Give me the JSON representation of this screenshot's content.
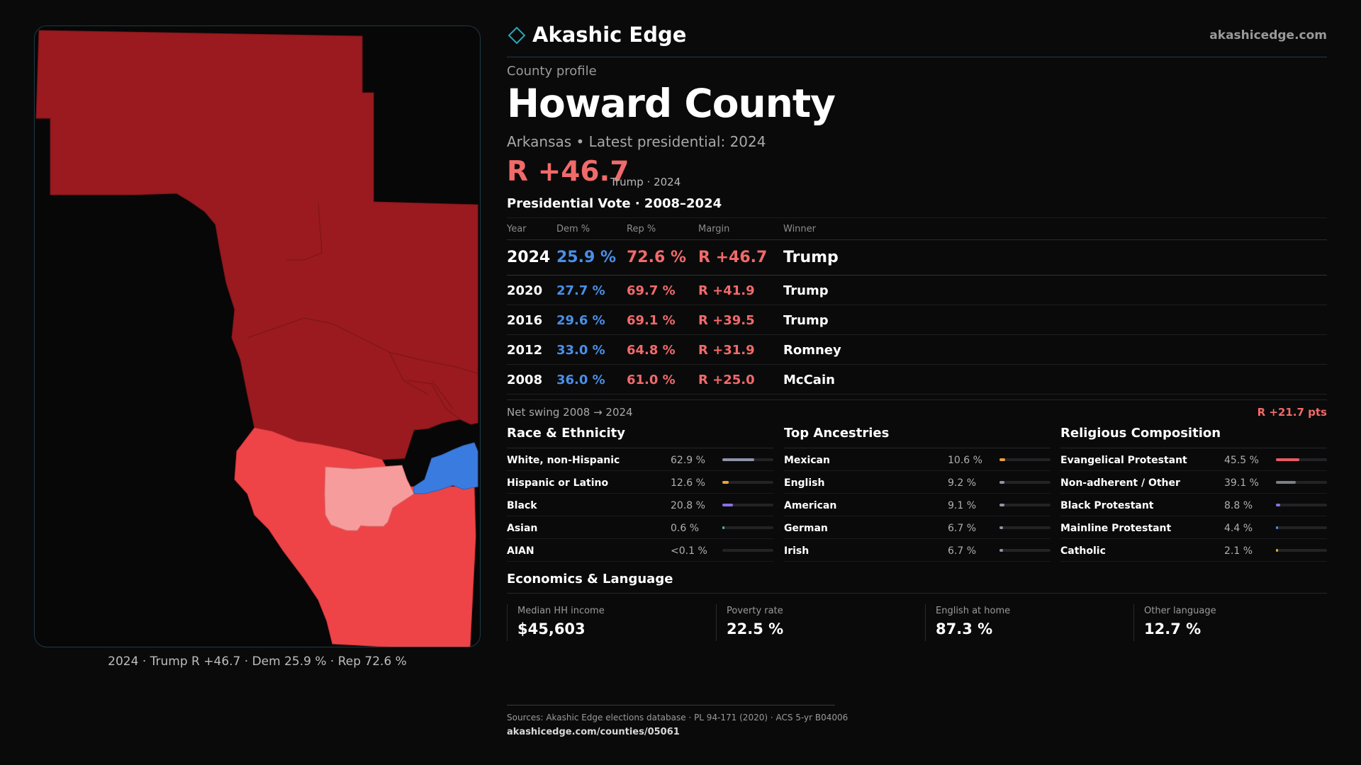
{
  "brand": {
    "name": "Akashic Edge",
    "url": "akashicedge.com"
  },
  "page": {
    "eyebrow": "County profile",
    "title": "Howard County",
    "subtitle": "Arkansas • Latest presidential: 2024",
    "headline_margin": "R +46.7",
    "headline_note": "Trump · 2024",
    "presidential_section": "Presidential Vote · 2008–2024"
  },
  "vote_table": {
    "headers": {
      "year": "Year",
      "dem": "Dem %",
      "rep": "Rep %",
      "margin": "Margin",
      "winner": "Winner"
    },
    "rows": [
      {
        "year": "2024",
        "dem": "25.9 %",
        "rep": "72.6 %",
        "margin": "R +46.7",
        "winner": "Trump"
      },
      {
        "year": "2020",
        "dem": "27.7 %",
        "rep": "69.7 %",
        "margin": "R +41.9",
        "winner": "Trump"
      },
      {
        "year": "2016",
        "dem": "29.6 %",
        "rep": "69.1 %",
        "margin": "R +39.5",
        "winner": "Trump"
      },
      {
        "year": "2012",
        "dem": "33.0 %",
        "rep": "64.8 %",
        "margin": "R +31.9",
        "winner": "Romney"
      },
      {
        "year": "2008",
        "dem": "36.0 %",
        "rep": "61.0 %",
        "margin": "R +25.0",
        "winner": "McCain"
      }
    ]
  },
  "swing": {
    "label": "Net swing 2008 → 2024",
    "value": "R +21.7 pts"
  },
  "race": {
    "title": "Race & Ethnicity",
    "rows": [
      {
        "label": "White, non-Hispanic",
        "value": "62.9 %",
        "share": 0.629,
        "color": "#8e95a8"
      },
      {
        "label": "Hispanic or Latino",
        "value": "12.6 %",
        "share": 0.126,
        "color": "#e9a23b"
      },
      {
        "label": "Black",
        "value": "20.8 %",
        "share": 0.208,
        "color": "#8b6fe0"
      },
      {
        "label": "Asian",
        "value": "0.6 %",
        "share": 0.006,
        "color": "#4fb3a3"
      },
      {
        "label": "AIAN",
        "value": "<0.1 %",
        "share": 0.0,
        "color": "#777777"
      }
    ]
  },
  "ancestry": {
    "title": "Top Ancestries",
    "rows": [
      {
        "label": "Mexican",
        "value": "10.6 %",
        "share": 0.106,
        "color": "#e9a23b"
      },
      {
        "label": "English",
        "value": "9.2 %",
        "share": 0.092,
        "color": "#8e95a8"
      },
      {
        "label": "American",
        "value": "9.1 %",
        "share": 0.091,
        "color": "#8e95a8"
      },
      {
        "label": "German",
        "value": "6.7 %",
        "share": 0.067,
        "color": "#8e95a8"
      },
      {
        "label": "Irish",
        "value": "6.7 %",
        "share": 0.067,
        "color": "#8e95a8"
      }
    ]
  },
  "religion": {
    "title": "Religious Composition",
    "rows": [
      {
        "label": "Evangelical Protestant",
        "value": "45.5 %",
        "share": 0.455,
        "color": "#e85a63"
      },
      {
        "label": "Non-adherent / Other",
        "value": "39.1 %",
        "share": 0.391,
        "color": "#7b7f89"
      },
      {
        "label": "Black Protestant",
        "value": "8.8 %",
        "share": 0.088,
        "color": "#8b6fe0"
      },
      {
        "label": "Mainline Protestant",
        "value": "4.4 %",
        "share": 0.044,
        "color": "#4a8fe8"
      },
      {
        "label": "Catholic",
        "value": "2.1 %",
        "share": 0.021,
        "color": "#d9b43b"
      }
    ]
  },
  "economics": {
    "title": "Economics & Language",
    "cells": [
      {
        "label": "Median HH income",
        "value": "$45,603"
      },
      {
        "label": "Poverty rate",
        "value": "22.5 %"
      },
      {
        "label": "English at home",
        "value": "87.3 %"
      },
      {
        "label": "Other language",
        "value": "12.7 %"
      }
    ]
  },
  "map": {
    "caption": "2024 · Trump R +46.7 · Dem 25.9 % · Rep 72.6 %",
    "colors": {
      "strong_r": "#9a1a1f",
      "lean_r": "#ee4448",
      "tilt_r": "#f79c9c",
      "dem": "#3a7be0"
    }
  },
  "sources": {
    "line": "Sources: Akashic Edge elections database · PL 94-171 (2020) · ACS 5-yr B04006",
    "url": "akashicedge.com/counties/05061"
  }
}
